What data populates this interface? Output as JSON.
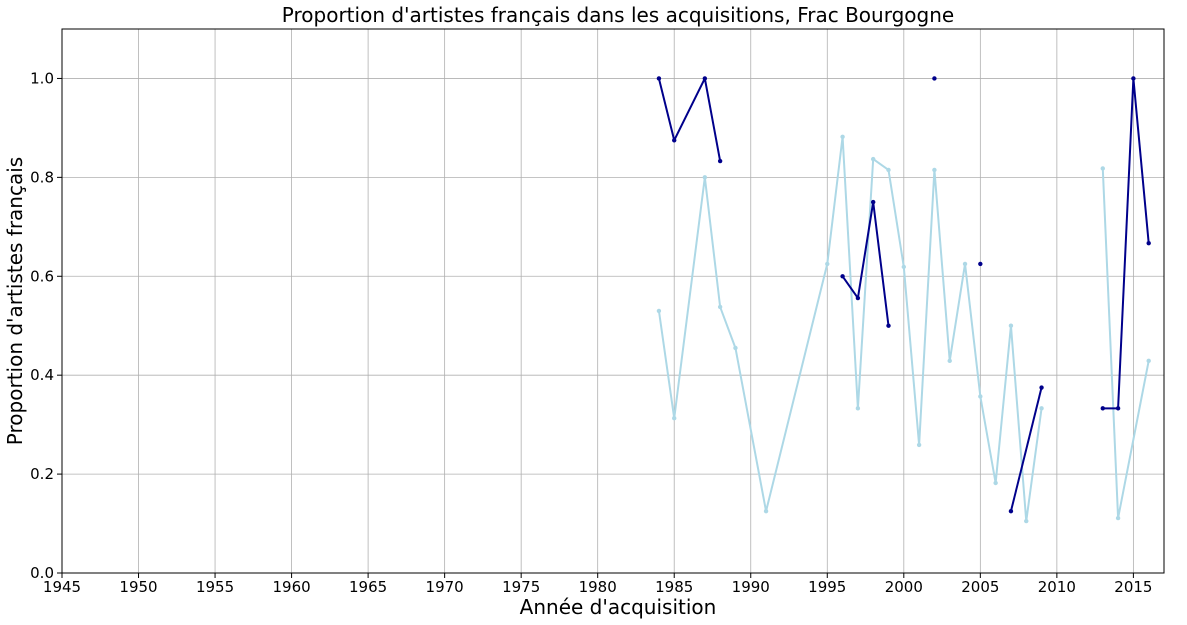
{
  "chart_data": {
    "type": "line",
    "title": "Proportion d'artistes français dans les acquisitions, Frac Bourgogne",
    "xlabel": "Année d'acquisition",
    "ylabel": "Proportion d'artistes français",
    "xlim": [
      1945,
      2017
    ],
    "ylim": [
      0,
      1.1
    ],
    "xticks": [
      1945,
      1950,
      1955,
      1960,
      1965,
      1970,
      1975,
      1980,
      1985,
      1990,
      1995,
      2000,
      2005,
      2010,
      2015
    ],
    "yticks": [
      0.0,
      0.2,
      0.4,
      0.6,
      0.8,
      1.0
    ],
    "ytick_labels": [
      "0.0",
      "0.2",
      "0.4",
      "0.6",
      "0.8",
      "1.0"
    ],
    "grid": true,
    "series": [
      {
        "color": "#add8e6",
        "points": [
          [
            1984,
            0.53
          ],
          [
            1985,
            0.313
          ],
          [
            1987,
            0.8
          ],
          [
            1988,
            0.538
          ],
          [
            1989,
            0.455
          ],
          [
            1991,
            0.125
          ],
          [
            1995,
            0.625
          ],
          [
            1996,
            0.882
          ],
          [
            1997,
            0.333
          ],
          [
            1998,
            0.837
          ],
          [
            1999,
            0.815
          ],
          [
            2000,
            0.619
          ],
          [
            2001,
            0.259
          ],
          [
            2002,
            0.815
          ],
          [
            2003,
            0.429
          ],
          [
            2004,
            0.625
          ],
          [
            2005,
            0.357
          ],
          [
            2006,
            0.182
          ],
          [
            2007,
            0.5
          ],
          [
            2008,
            0.105
          ],
          [
            2009,
            0.333
          ],
          null,
          [
            2013,
            0.818
          ],
          [
            2014,
            0.111
          ],
          [
            2016,
            0.429
          ]
        ]
      },
      {
        "color": "#00008b",
        "points": [
          [
            1984,
            1.0
          ],
          [
            1985,
            0.875
          ],
          [
            1987,
            1.0
          ],
          [
            1988,
            0.833
          ],
          null,
          [
            1996,
            0.6
          ],
          [
            1997,
            0.556
          ],
          [
            1998,
            0.75
          ],
          [
            1999,
            0.5
          ],
          null,
          [
            2002,
            1.0
          ],
          null,
          [
            2005,
            0.625
          ],
          null,
          [
            2007,
            0.125
          ],
          [
            2009,
            0.375
          ],
          null,
          [
            2013,
            0.333
          ],
          [
            2014,
            0.333
          ],
          [
            2015,
            1.0
          ],
          [
            2016,
            0.667
          ]
        ]
      }
    ]
  }
}
